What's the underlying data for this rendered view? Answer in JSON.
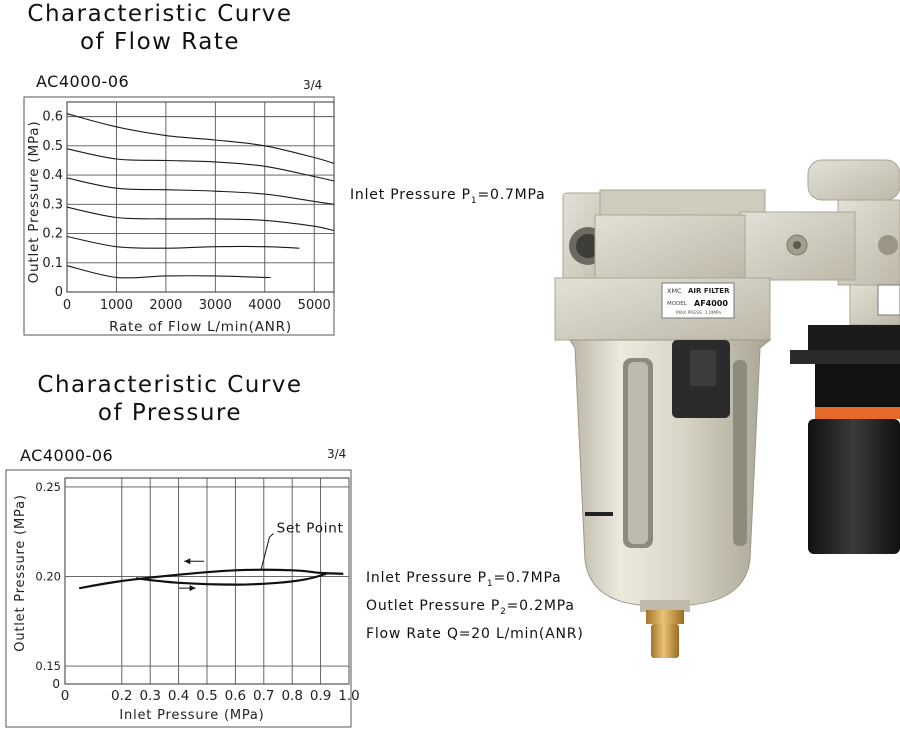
{
  "charts": [
    {
      "title_line1": "Characteristic Curve",
      "title_line2": "of Flow Rate",
      "model": "AC4000-06",
      "fraction": "3/4",
      "annotation": {
        "text": "Inlet Pressure P",
        "sub": "1",
        "suffix": "=0.7MPa"
      }
    },
    {
      "title_line1": "Characteristic Curve",
      "title_line2": "of Pressure",
      "model": "AC4000-06",
      "fraction": "3/4",
      "notes": [
        {
          "text": "Inlet Pressure P",
          "sub": "1",
          "suffix": "=0.7MPa"
        },
        {
          "text": "Outlet Pressure P",
          "sub": "2",
          "suffix": "=0.2MPa"
        },
        {
          "text": "Flow Rate Q=20 L/min(ANR)",
          "sub": "",
          "suffix": ""
        }
      ]
    }
  ],
  "product": {
    "label_brand": "XMC",
    "label_title": "AIR FILTER",
    "label_model_prefix": "MODEL",
    "label_model": "AF4000",
    "label_press": "MAX PRESS. 1.0MPa"
  },
  "chart_data": [
    {
      "type": "line",
      "xlabel": "Rate of Flow L/min(ANR)",
      "ylabel": "Outlet Pressure (MPa)",
      "xlim": [
        0,
        5400
      ],
      "ylim": [
        0,
        0.65
      ],
      "xticks": [
        0,
        1000,
        2000,
        3000,
        4000,
        5000
      ],
      "yticks": [
        0,
        0.1,
        0.2,
        0.3,
        0.4,
        0.5,
        0.6
      ],
      "grid": true,
      "series": [
        {
          "x": [
            0,
            1000,
            2000,
            3000,
            4000,
            5000,
            5400
          ],
          "y": [
            0.61,
            0.565,
            0.535,
            0.52,
            0.5,
            0.46,
            0.44
          ]
        },
        {
          "x": [
            0,
            1000,
            2000,
            3000,
            4000,
            5000,
            5400
          ],
          "y": [
            0.49,
            0.455,
            0.45,
            0.445,
            0.43,
            0.395,
            0.38
          ]
        },
        {
          "x": [
            0,
            1000,
            2000,
            3000,
            4000,
            5000,
            5400
          ],
          "y": [
            0.39,
            0.355,
            0.35,
            0.345,
            0.335,
            0.31,
            0.3
          ]
        },
        {
          "x": [
            0,
            1000,
            2000,
            3000,
            4000,
            5000,
            5400
          ],
          "y": [
            0.29,
            0.255,
            0.25,
            0.25,
            0.245,
            0.225,
            0.21
          ]
        },
        {
          "x": [
            0,
            1000,
            2000,
            3000,
            4000,
            4700
          ],
          "y": [
            0.19,
            0.155,
            0.15,
            0.155,
            0.155,
            0.15
          ]
        },
        {
          "x": [
            0,
            1000,
            2000,
            3000,
            4000,
            4100
          ],
          "y": [
            0.09,
            0.05,
            0.055,
            0.055,
            0.05,
            0.05
          ]
        }
      ]
    },
    {
      "type": "line",
      "xlabel": "Inlet Pressure (MPa)",
      "ylabel": "Outlet Pressure (MPa)",
      "xlim": [
        0,
        1.0
      ],
      "ylim": [
        0.14,
        0.255
      ],
      "xticks": [
        0,
        0.2,
        0.3,
        0.4,
        0.5,
        0.6,
        0.7,
        0.8,
        0.9,
        1.0
      ],
      "yticks": [
        0.15,
        0.2,
        0.25
      ],
      "ytick_labels": [
        "0.15",
        "0.20",
        "0.25"
      ],
      "extra_ytick": {
        "value": 0.14,
        "label": "0"
      },
      "grid": true,
      "annotation": "Set Point",
      "series": [
        {
          "x": [
            0.05,
            0.2,
            0.4,
            0.6,
            0.8,
            0.9,
            0.98
          ],
          "y": [
            0.1935,
            0.1975,
            0.201,
            0.2035,
            0.2035,
            0.202,
            0.2015
          ]
        },
        {
          "x": [
            0.25,
            0.4,
            0.6,
            0.75,
            0.85,
            0.92
          ],
          "y": [
            0.199,
            0.1965,
            0.1955,
            0.1965,
            0.1985,
            0.2015
          ]
        }
      ]
    }
  ]
}
